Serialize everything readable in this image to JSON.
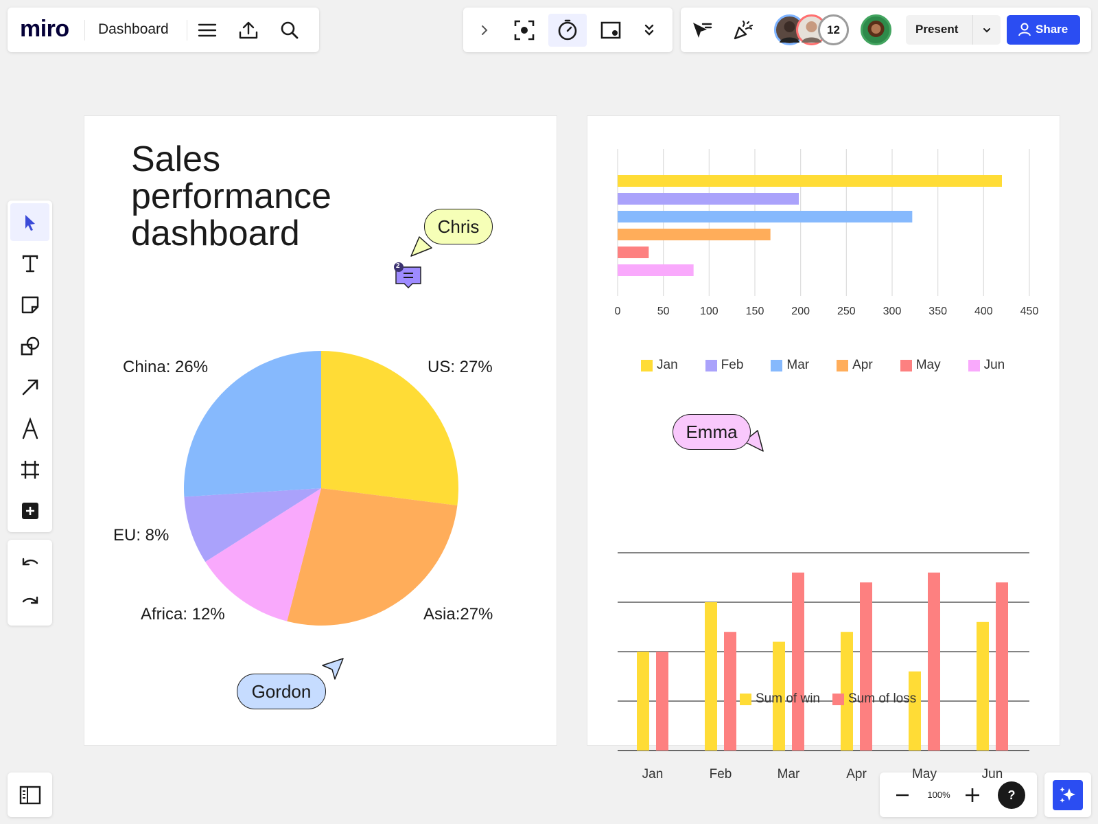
{
  "app": {
    "logo": "miro",
    "board_name": "Dashboard"
  },
  "icons": {
    "menu": "menu-icon",
    "upload": "upload-icon",
    "search": "search-icon",
    "chevron": "chevron-right-icon",
    "focus": "focus-icon",
    "timer": "timer-icon",
    "card": "card-icon",
    "more": "double-chevron-down-icon",
    "cursor": "cursor-icon",
    "celebrate": "celebrate-icon"
  },
  "collaborators": {
    "count": "12"
  },
  "present": {
    "label": "Present"
  },
  "share": {
    "label": "Share"
  },
  "zoom": {
    "level": "100%"
  },
  "colors": {
    "yellow": "#ffdc36",
    "purple": "#aaa2fb",
    "blue": "#86b9fd",
    "orange": "#ffad5a",
    "red": "#fd8080",
    "pink": "#f9a9fc",
    "accent": "#2b4df2"
  },
  "dashboard": {
    "title_line1": "Sales",
    "title_line2": "performance",
    "title_line3": "dashboard"
  },
  "cursors": {
    "chris": "Chris",
    "gordon": "Gordon",
    "emma": "Emma"
  },
  "comment": {
    "count": "2"
  },
  "chart_data": [
    {
      "type": "pie",
      "slices": [
        {
          "label": "US: 27%",
          "value": 27,
          "color": "#ffdc36"
        },
        {
          "label": "Asia:27%",
          "value": 27,
          "color": "#ffad5a"
        },
        {
          "label": "Africa: 12%",
          "value": 12,
          "color": "#f9a9fc"
        },
        {
          "label": "EU: 8%",
          "value": 8,
          "color": "#aaa2fb"
        },
        {
          "label": "China: 26%",
          "value": 26,
          "color": "#86b9fd"
        }
      ]
    },
    {
      "type": "bar",
      "orientation": "horizontal",
      "categories": [
        "Jan",
        "Feb",
        "Mar",
        "Apr",
        "May",
        "Jun"
      ],
      "values": [
        420,
        198,
        322,
        167,
        34,
        83
      ],
      "colors": [
        "#ffdc36",
        "#aaa2fb",
        "#86b9fd",
        "#ffad5a",
        "#fd8080",
        "#f9a9fc"
      ],
      "xticks": [
        "0",
        "50",
        "100",
        "150",
        "200",
        "250",
        "300",
        "350",
        "400",
        "450"
      ],
      "xlim": [
        0,
        450
      ],
      "grid": true,
      "legend": "bottom"
    },
    {
      "type": "bar",
      "categories": [
        "Jan",
        "Feb",
        "Mar",
        "Apr",
        "May",
        "Jun"
      ],
      "ylim": [
        0,
        4
      ],
      "grid": true,
      "legend": "bottom",
      "series": [
        {
          "name": "Sum of win",
          "color": "#ffdc36",
          "values": [
            2.0,
            3.0,
            2.2,
            2.4,
            1.6,
            2.6
          ]
        },
        {
          "name": "Sum of loss",
          "color": "#fd8080",
          "values": [
            2.0,
            2.4,
            3.6,
            3.4,
            3.6,
            3.4
          ]
        }
      ]
    }
  ]
}
